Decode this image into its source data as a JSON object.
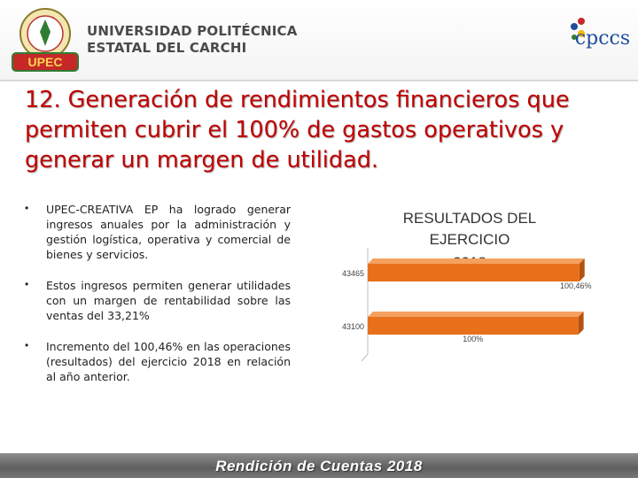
{
  "header": {
    "university_line1": "UNIVERSIDAD POLITÉCNICA",
    "university_line2": "ESTATAL DEL CARCHI",
    "logo_left_text": "UPEC",
    "logo_right_text": "cpccs"
  },
  "slide": {
    "title": "12. Generación de rendimientos financieros que permiten cubrir el 100% de gastos operativos y generar un margen de utilidad.",
    "bullets": [
      "UPEC-CREATIVA EP ha logrado generar ingresos anuales por la administración y gestión logística, operativa y comercial de bienes y servicios.",
      "Estos ingresos permiten generar utilidades con un margen de rentabilidad sobre las ventas del 33,21%",
      "Incremento del 100,46% en las operaciones (resultados) del ejercicio 2018 en relación al año anterior."
    ],
    "bullet_marker": "•"
  },
  "chart_data": {
    "type": "bar",
    "orientation": "horizontal",
    "title": "RESULTADOS DEL EJERCICIO 2018",
    "categories": [
      "43465",
      "43100"
    ],
    "values": [
      100.46,
      100
    ],
    "data_labels": [
      "100,46%",
      "100%"
    ],
    "colors": {
      "bar": "#e8701a",
      "bar_top": "#f4a060",
      "frame": "#bfbfbf"
    }
  },
  "footer": {
    "text": "Rendición de Cuentas 2018"
  }
}
